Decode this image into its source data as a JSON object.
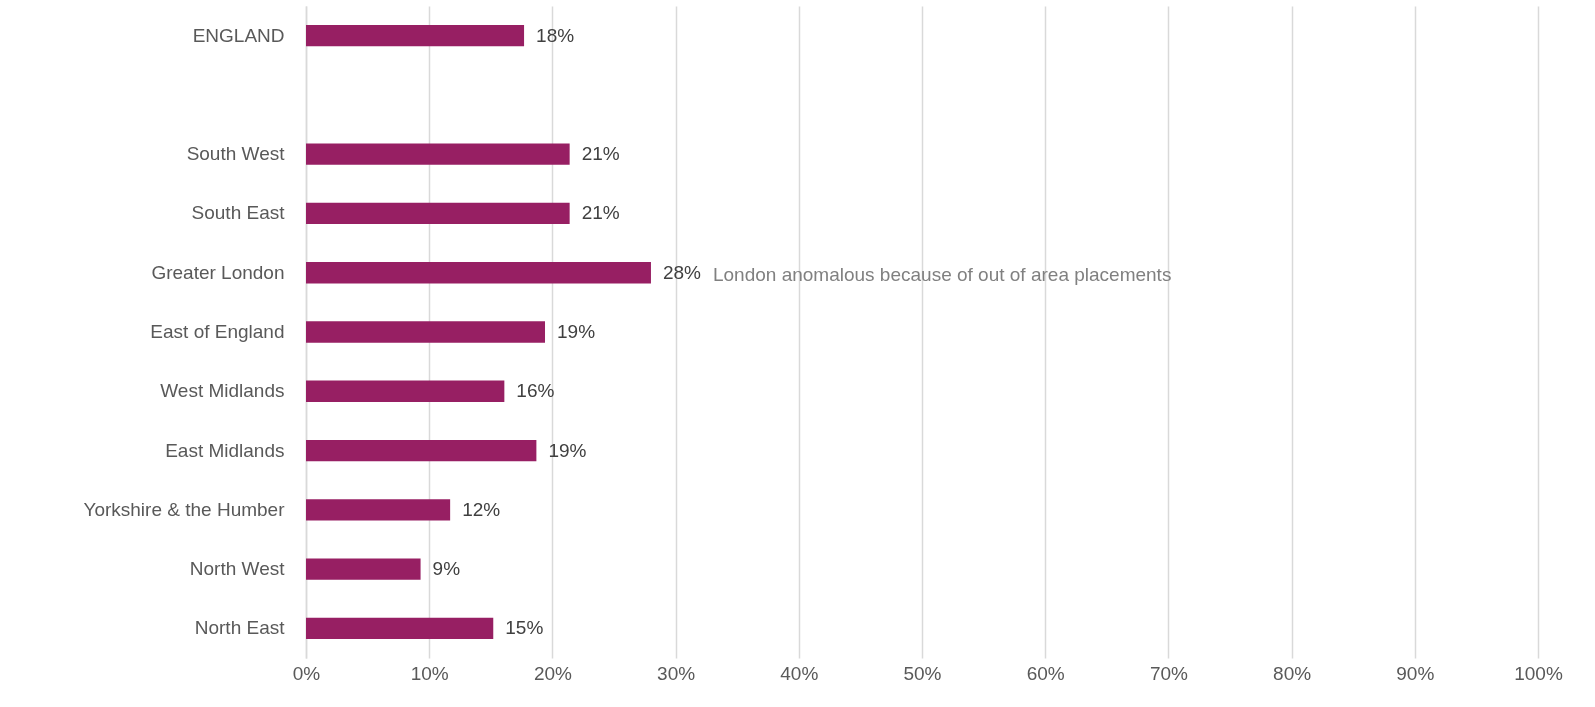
{
  "chart_data": {
    "type": "bar",
    "orientation": "horizontal",
    "categories": [
      "ENGLAND",
      null,
      "South West",
      "South East",
      "Greater London",
      "East of England",
      "West Midlands",
      "East Midlands",
      "Yorkshire & the Humber",
      "North West",
      "North East"
    ],
    "values": [
      17.7,
      null,
      21.4,
      21.4,
      28.0,
      19.4,
      16.1,
      18.7,
      11.7,
      9.3,
      15.2
    ],
    "value_labels": [
      "18%",
      null,
      "21%",
      "21%",
      "28%",
      "19%",
      "16%",
      "19%",
      "12%",
      "9%",
      "15%"
    ],
    "color": "#971f63",
    "xlim": [
      0,
      100
    ],
    "xticks": [
      {
        "value": 0,
        "label": "0%"
      },
      {
        "value": 10,
        "label": "10%"
      },
      {
        "value": 20,
        "label": "20%"
      },
      {
        "value": 30,
        "label": "30%"
      },
      {
        "value": 40,
        "label": "40%"
      },
      {
        "value": 50,
        "label": "50%"
      },
      {
        "value": 60,
        "label": "60%"
      },
      {
        "value": 70,
        "label": "70%"
      },
      {
        "value": 80,
        "label": "80%"
      },
      {
        "value": 90,
        "label": "90%"
      },
      {
        "value": 100,
        "label": "100%"
      }
    ],
    "grid": "x",
    "annotations": [
      "London anomalous because of out of area placements"
    ]
  }
}
